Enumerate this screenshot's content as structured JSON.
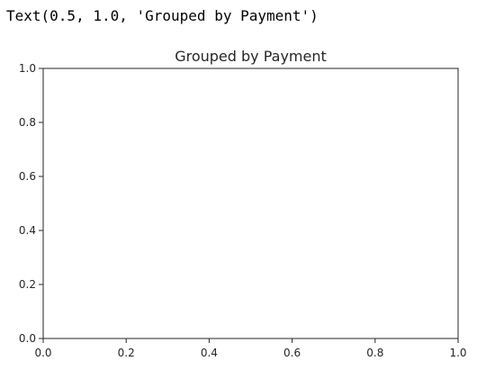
{
  "cell_output": {
    "text": "Text(0.5, 1.0, 'Grouped by Payment')"
  },
  "chart_data": {
    "type": "line",
    "title": "Grouped by Payment",
    "xlabel": "",
    "ylabel": "",
    "xlim": [
      0.0,
      1.0
    ],
    "ylim": [
      0.0,
      1.0
    ],
    "x_ticks": [
      0.0,
      0.2,
      0.4,
      0.6,
      0.8,
      1.0
    ],
    "x_tick_labels": [
      "0.0",
      "0.2",
      "0.4",
      "0.6",
      "0.8",
      "1.0"
    ],
    "y_ticks": [
      0.0,
      0.2,
      0.4,
      0.6,
      0.8,
      1.0
    ],
    "y_tick_labels": [
      "0.0",
      "0.2",
      "0.4",
      "0.6",
      "0.8",
      "1.0"
    ],
    "series": [],
    "grid": false,
    "colors": {
      "axis": "#262626",
      "background": "#ffffff"
    }
  }
}
